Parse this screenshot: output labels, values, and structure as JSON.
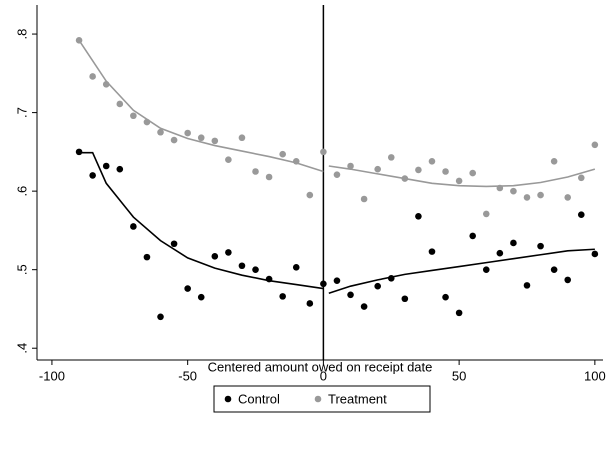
{
  "chart_data": {
    "type": "scatter",
    "xlabel": "Centered amount owed on receipt date",
    "x": [
      -90,
      -85,
      -80,
      -75,
      -70,
      -65,
      -60,
      -55,
      -50,
      -45,
      -40,
      -35,
      -30,
      -25,
      -20,
      -15,
      -10,
      -5,
      0,
      5,
      10,
      15,
      20,
      25,
      30,
      35,
      40,
      45,
      50,
      55,
      60,
      65,
      70,
      75,
      80,
      85,
      90,
      95,
      100
    ],
    "series": [
      {
        "name": "Control",
        "color": "#000000",
        "values": [
          0.65,
          0.62,
          0.632,
          0.628,
          0.555,
          0.516,
          0.44,
          0.533,
          0.476,
          0.465,
          0.517,
          0.522,
          0.505,
          0.5,
          0.488,
          0.466,
          0.503,
          0.457,
          0.482,
          0.486,
          0.468,
          0.453,
          0.479,
          0.489,
          0.463,
          0.568,
          0.523,
          0.465,
          0.445,
          0.543,
          0.5,
          0.521,
          0.534,
          0.48,
          0.53,
          0.5,
          0.487,
          0.57,
          0.52
        ],
        "fit": [
          {
            "x": [
              -90,
              -85,
              -80,
              -70,
              -60,
              -50,
              -40,
              -30,
              -20,
              -10,
              0
            ],
            "values": [
              0.649,
              0.649,
              0.61,
              0.567,
              0.537,
              0.515,
              0.502,
              0.493,
              0.486,
              0.481,
              0.476
            ]
          },
          {
            "x": [
              2,
              10,
              20,
              30,
              40,
              50,
              60,
              70,
              80,
              90,
              100
            ],
            "values": [
              0.47,
              0.479,
              0.487,
              0.494,
              0.499,
              0.504,
              0.509,
              0.514,
              0.519,
              0.524,
              0.526
            ]
          }
        ]
      },
      {
        "name": "Treatment",
        "color": "#999999",
        "values": [
          0.792,
          0.746,
          0.736,
          0.711,
          0.696,
          0.688,
          0.675,
          0.665,
          0.674,
          0.668,
          0.664,
          0.64,
          0.668,
          0.625,
          0.618,
          0.647,
          0.638,
          0.595,
          0.65,
          0.621,
          0.632,
          0.59,
          0.628,
          0.643,
          0.616,
          0.627,
          0.638,
          0.625,
          0.613,
          0.623,
          0.571,
          0.604,
          0.6,
          0.592,
          0.595,
          0.638,
          0.592,
          0.617,
          0.659
        ],
        "fit": [
          {
            "x": [
              -90,
              -80,
              -70,
              -60,
              -50,
              -40,
              -30,
              -20,
              -10,
              0
            ],
            "values": [
              0.792,
              0.74,
              0.703,
              0.68,
              0.667,
              0.658,
              0.651,
              0.644,
              0.636,
              0.625
            ]
          },
          {
            "x": [
              2,
              10,
              20,
              30,
              40,
              50,
              60,
              70,
              80,
              90,
              100
            ],
            "values": [
              0.632,
              0.628,
              0.622,
              0.616,
              0.61,
              0.607,
              0.606,
              0.607,
              0.611,
              0.618,
              0.628
            ]
          }
        ]
      }
    ],
    "vline": 0,
    "xlim": [
      -105.5,
      103
    ],
    "ylim": [
      0.385,
      0.837
    ],
    "xticks": [
      -100,
      -50,
      0,
      50,
      100
    ],
    "yticks": [
      {
        "value": 0.4,
        "label": ".4"
      },
      {
        "value": 0.5,
        "label": ".5"
      },
      {
        "value": 0.6,
        "label": ".6"
      },
      {
        "value": 0.7,
        "label": ".7"
      },
      {
        "value": 0.8,
        "label": ".8"
      }
    ],
    "legend": "bottom"
  }
}
